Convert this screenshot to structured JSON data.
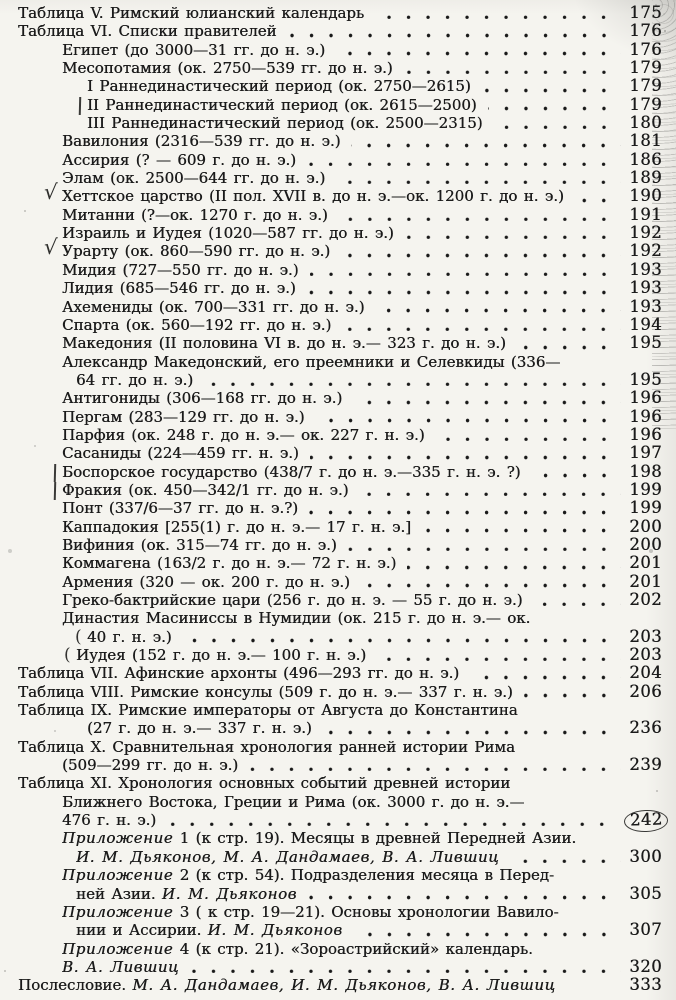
{
  "document": {
    "kind": "scanned book table of contents",
    "language": "Russian",
    "colors": {
      "paper": "#f5f4ef",
      "ink": "#1b1b1b",
      "pencil_annotation": "#3c3c3a"
    }
  },
  "toc": {
    "rows": [
      {
        "indent": 0,
        "text": "Таблица V. Римский юлианский календарь",
        "page": "175"
      },
      {
        "indent": 0,
        "text": "Таблица VI. Списки правителей",
        "page": "176"
      },
      {
        "indent": 1,
        "text": "Египет (до 3000—31 гг. до н. э.)",
        "page": "176"
      },
      {
        "indent": 1,
        "text": "Месопотамия (ок. 2750—539 гг. до н. э.)",
        "page": "179"
      },
      {
        "indent": 3,
        "text": "I Раннединастический период (ок. 2750—2615)",
        "page": "179"
      },
      {
        "indent": 3,
        "text": "II Раннединастический период (ок. 2615—2500)",
        "page": "179",
        "mark": "bar"
      },
      {
        "indent": 3,
        "text": "III Раннединастический период (ок. 2500—2315)",
        "page": "180"
      },
      {
        "indent": 1,
        "text": "Вавилония (2316—539 гг. до н. э.)",
        "page": "181"
      },
      {
        "indent": 1,
        "text": "Ассирия (? — 609 г. до н. э.)",
        "page": "186"
      },
      {
        "indent": 1,
        "text": "Элам (ок. 2500—644 гг. до н. э.)",
        "page": "189"
      },
      {
        "indent": 1,
        "text": "Хеттское царство (II пол. XVII в. до н. э.—ок. 1200 г. до н. э.)",
        "page": "190",
        "mark": "check"
      },
      {
        "indent": 1,
        "text": "Митанни (?—ок. 1270 г. до н. э.)",
        "page": "191"
      },
      {
        "indent": 1,
        "text": "Израиль и Иудея (1020—587 гг. до н. э.)",
        "page": "192"
      },
      {
        "indent": 1,
        "text": "Урарту (ок. 860—590 гг. до н. э.)",
        "page": "192",
        "mark": "check"
      },
      {
        "indent": 1,
        "text": "Мидия (727—550 гг. до н. э.)",
        "page": "193"
      },
      {
        "indent": 1,
        "text": "Лидия (685—546 гг. до н. э.)",
        "page": "193"
      },
      {
        "indent": 1,
        "text": "Ахемениды (ок. 700—331 гг. до н. э.)",
        "page": "193"
      },
      {
        "indent": 1,
        "text": "Спарта (ок. 560—192 гг. до н. э.)",
        "page": "194"
      },
      {
        "indent": 1,
        "text": "Македония (II половина VI в. до н. э.— 323 г. до н. э.)",
        "page": "195"
      },
      {
        "indent": 1,
        "text": "Александр Македонский, его преемники и Селевкиды (336—"
      },
      {
        "indent": 2,
        "text": "64 гг. до н. э.)",
        "page": "195"
      },
      {
        "indent": 1,
        "text": "Антигониды (306—168 гг. до н. э.)",
        "page": "196"
      },
      {
        "indent": 1,
        "text": "Пергам (283—129 гг. до н. э.)",
        "page": "196"
      },
      {
        "indent": 1,
        "text": "Парфия (ок. 248 г. до н. э.— ок. 227 г. н. э.)",
        "page": "196"
      },
      {
        "indent": 1,
        "text": "Сасаниды (224—459 гг. н. э.)",
        "page": "197"
      },
      {
        "indent": 1,
        "text": "Боспорское государство (438/7 г. до н. э.—335 г. н. э. ?)",
        "page": "198",
        "mark": "bar"
      },
      {
        "indent": 1,
        "text": "Фракия (ок. 450—342/1 гг. до н. э.)",
        "page": "199",
        "mark": "bar"
      },
      {
        "indent": 1,
        "text": "Понт (337/6—37 гг. до н. э.?)",
        "page": "199"
      },
      {
        "indent": 1,
        "text": "Каппадокия [255(1) г. до н. э.— 17 г. н. э.]",
        "page": "200"
      },
      {
        "indent": 1,
        "text": "Вифиния (ок. 315—74 гг. до н. э.)",
        "page": "200"
      },
      {
        "indent": 1,
        "text": "Коммагена (163/2 г. до н. э.— 72 г. н. э.)",
        "page": "201"
      },
      {
        "indent": 1,
        "text": "Армения (320 — ок. 200 г. до н. э.)",
        "page": "201"
      },
      {
        "indent": 1,
        "text": "Греко-бактрийские цари (256 г. до н. э. — 55 г. до н. э.)",
        "page": "202"
      },
      {
        "indent": 1,
        "text": "Династия Масиниссы в Нумидии (ок. 215 г. до н. э.— ок."
      },
      {
        "indent": 3,
        "text": "40 г. н. э.)",
        "page": "203",
        "mark": "paren"
      },
      {
        "indent": 2,
        "text": "Иудея (152 г. до н. э.— 100 г. н. э.)",
        "page": "203",
        "mark": "paren"
      },
      {
        "indent": 0,
        "text": "Таблица VII. Афинские архонты (496—293 гг. до н. э.)",
        "page": "204"
      },
      {
        "indent": 0,
        "text": "Таблица VIII. Римские консулы (509 г. до н. э.— 337 г. н. э.)",
        "page": "206"
      },
      {
        "indent": 0,
        "text": "Таблица IX. Римские императоры от Августа до Константина"
      },
      {
        "indent": 3,
        "text": "(27 г. до н. э.— 337 г. н. э.)",
        "page": "236"
      },
      {
        "indent": 0,
        "text": "Таблица X. Сравнительная хронология ранней истории Рима"
      },
      {
        "indent": 1,
        "text": "(509—299 гг. до н. э.)",
        "page": "239"
      },
      {
        "indent": 0,
        "text": "Таблица XI. Хронология основных событий древней истории"
      },
      {
        "indent": 1,
        "text": "Ближнего Востока, Греции и Рима (ок. 3000 г. до н. э.—"
      },
      {
        "indent": 1,
        "text": "476 г. н. э.)",
        "page": "242",
        "circled": true
      },
      {
        "indent": 1,
        "segments": [
          {
            "style": "italic",
            "text": "Приложение"
          },
          {
            "style": "roman",
            "text": " 1 (к стр. 19). Месяцы в древней Передней Азии."
          }
        ]
      },
      {
        "indent": 2,
        "segments": [
          {
            "style": "italic",
            "text": "И. М. Дьяконов, М. А. Дандамаев, В. А. Лившиц"
          }
        ],
        "page": "300"
      },
      {
        "indent": 1,
        "segments": [
          {
            "style": "italic",
            "text": "Приложение"
          },
          {
            "style": "roman",
            "text": " 2 (к стр. 54). Подразделения месяца в Перед-"
          }
        ]
      },
      {
        "indent": 2,
        "segments": [
          {
            "style": "roman",
            "text": "ней Азии. "
          },
          {
            "style": "italic",
            "text": "И. М. Дьяконов"
          }
        ],
        "page": "305"
      },
      {
        "indent": 1,
        "segments": [
          {
            "style": "italic",
            "text": "Приложение"
          },
          {
            "style": "roman",
            "text": " 3 ( к стр. 19—21). Основы хронологии Вавило-"
          }
        ]
      },
      {
        "indent": 2,
        "segments": [
          {
            "style": "roman",
            "text": "нии и Ассирии. "
          },
          {
            "style": "italic",
            "text": "И. М. Дьяконов"
          }
        ],
        "page": "307"
      },
      {
        "indent": 1,
        "segments": [
          {
            "style": "italic",
            "text": "Приложение"
          },
          {
            "style": "roman",
            "text": " 4 (к  стр. 21).  «Зороастрийский»  календарь."
          }
        ]
      },
      {
        "indent": 1,
        "segments": [
          {
            "style": "italic",
            "text": "В. А. Лившиц"
          }
        ],
        "page": "320"
      },
      {
        "indent": 0,
        "segments": [
          {
            "style": "roman",
            "text": "Послесловие. "
          },
          {
            "style": "italic",
            "text": "М. А. Дандамаев,  И. М. Дьяконов, В. А. Лившиц"
          }
        ],
        "page": "333",
        "dots": false
      }
    ]
  }
}
